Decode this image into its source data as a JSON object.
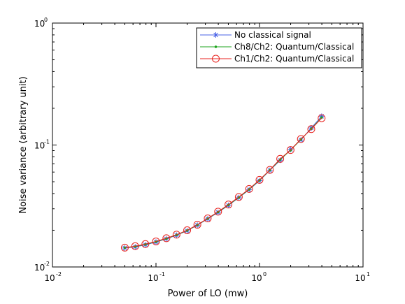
{
  "chart_data": {
    "type": "line",
    "xlabel": "Power of LO (mw)",
    "ylabel": "Noise variance (arbitrary unit)",
    "x_scale": "log",
    "y_scale": "log",
    "xlim": [
      0.01,
      10
    ],
    "ylim": [
      0.01,
      1
    ],
    "grid": false,
    "legend_position": "top-right",
    "x_ticks": [
      {
        "value": 0.01,
        "base": "10",
        "exp": "-2"
      },
      {
        "value": 0.1,
        "base": "10",
        "exp": "-1"
      },
      {
        "value": 1,
        "base": "10",
        "exp": "0"
      },
      {
        "value": 10,
        "base": "10",
        "exp": "1"
      }
    ],
    "y_ticks": [
      {
        "value": 0.01,
        "base": "10",
        "exp": "-2"
      },
      {
        "value": 0.1,
        "base": "10",
        "exp": "-1"
      },
      {
        "value": 1,
        "base": "10",
        "exp": "0"
      }
    ],
    "x": [
      0.05,
      0.063,
      0.079,
      0.1,
      0.126,
      0.158,
      0.2,
      0.251,
      0.316,
      0.398,
      0.501,
      0.631,
      0.794,
      1.0,
      1.259,
      1.585,
      1.995,
      2.512,
      3.162,
      3.981
    ],
    "series": [
      {
        "name": "No classical signal",
        "color": "#4a63e6",
        "marker": "star",
        "values": [
          0.0143,
          0.0146,
          0.0152,
          0.016,
          0.017,
          0.0182,
          0.0198,
          0.022,
          0.0248,
          0.028,
          0.032,
          0.037,
          0.043,
          0.051,
          0.062,
          0.075,
          0.092,
          0.11,
          0.138,
          0.172
        ]
      },
      {
        "name": "Ch8/Ch2: Quantum/Classical",
        "color": "#1fa51f",
        "marker": "dot",
        "values": [
          0.0144,
          0.0147,
          0.0153,
          0.0161,
          0.0171,
          0.0183,
          0.0199,
          0.0221,
          0.0249,
          0.0282,
          0.0322,
          0.0372,
          0.0433,
          0.0514,
          0.0622,
          0.076,
          0.0905,
          0.111,
          0.136,
          0.168
        ]
      },
      {
        "name": "Ch1/Ch2: Quantum/Classical",
        "color": "#e8231f",
        "marker": "circle",
        "values": [
          0.0144,
          0.0148,
          0.0154,
          0.0162,
          0.0172,
          0.0184,
          0.02,
          0.0222,
          0.025,
          0.0284,
          0.0325,
          0.0375,
          0.0436,
          0.0518,
          0.0625,
          0.077,
          0.091,
          0.112,
          0.135,
          0.166
        ]
      }
    ]
  }
}
